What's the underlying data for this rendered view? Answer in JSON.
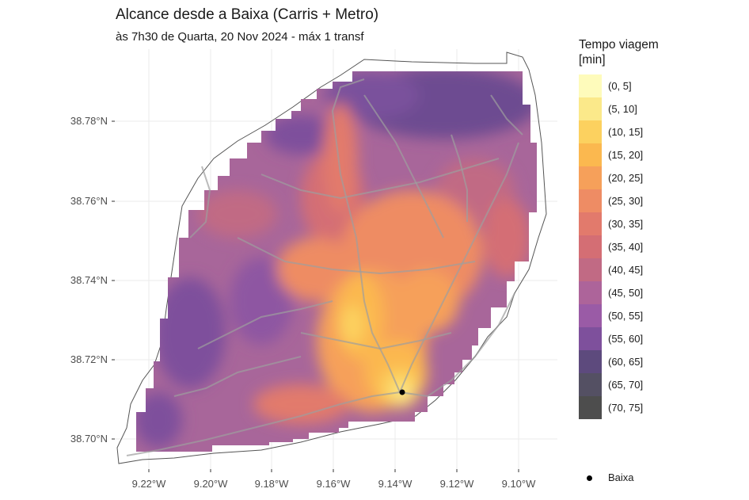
{
  "title": "Alcance desde a Baixa (Carris + Metro)",
  "subtitle": "às 7h30 de Quarta, 20 Nov 2024 - máx 1 transf",
  "legend": {
    "title_line1": "Tempo viagem",
    "title_line2": "[min]",
    "items": [
      {
        "label": "(0, 5]",
        "color": "#fefbbb"
      },
      {
        "label": "(5, 10]",
        "color": "#fbe98a"
      },
      {
        "label": "(10, 15]",
        "color": "#fcd15f"
      },
      {
        "label": "(15, 20]",
        "color": "#fbb84f"
      },
      {
        "label": "(20, 25]",
        "color": "#f6a05a"
      },
      {
        "label": "(25, 30]",
        "color": "#ee8c64"
      },
      {
        "label": "(30, 35]",
        "color": "#e27a6c"
      },
      {
        "label": "(35, 40]",
        "color": "#d46e74"
      },
      {
        "label": "(40, 45]",
        "color": "#c16a84"
      },
      {
        "label": "(45, 50]",
        "color": "#ad649a"
      },
      {
        "label": "(50, 55]",
        "color": "#9a5ba6"
      },
      {
        "label": "(55, 60]",
        "color": "#7e509c"
      },
      {
        "label": "(60, 65]",
        "color": "#5d4a7d"
      },
      {
        "label": "(65, 70]",
        "color": "#545063"
      },
      {
        "label": "(70, 75]",
        "color": "#4d4d4d"
      }
    ]
  },
  "axes": {
    "y_ticks": [
      "38.78°N",
      "38.76°N",
      "38.74°N",
      "38.72°N",
      "38.70°N"
    ],
    "x_ticks": [
      "9.22°W",
      "9.20°W",
      "9.18°W",
      "9.16°W",
      "9.14°W",
      "9.12°W",
      "9.10°W"
    ]
  },
  "point": {
    "label": "Baixa",
    "color": "#000000"
  }
}
